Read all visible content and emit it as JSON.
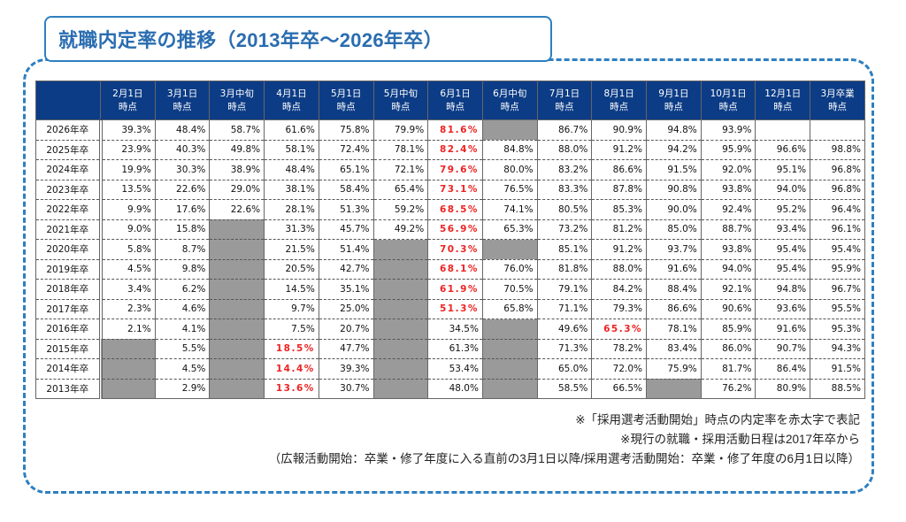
{
  "title": "就職内定率の推移（2013年卒〜2026年卒）",
  "colors": {
    "frame_border": "#2e7fc1",
    "title_text": "#2a6db0",
    "header_bg": "#0c3c85",
    "header_text": "#ffffff",
    "highlight_red": "#ee2222",
    "not_available_cell": "#9a9a9a"
  },
  "table": {
    "corner_label": "",
    "columns": [
      {
        "line1": "2月1日",
        "line2": "時点"
      },
      {
        "line1": "3月1日",
        "line2": "時点"
      },
      {
        "line1": "3月中旬",
        "line2": "時点"
      },
      {
        "line1": "4月1日",
        "line2": "時点"
      },
      {
        "line1": "5月1日",
        "line2": "時点"
      },
      {
        "line1": "5月中旬",
        "line2": "時点"
      },
      {
        "line1": "6月1日",
        "line2": "時点"
      },
      {
        "line1": "6月中旬",
        "line2": "時点"
      },
      {
        "line1": "7月1日",
        "line2": "時点"
      },
      {
        "line1": "8月1日",
        "line2": "時点"
      },
      {
        "line1": "9月1日",
        "line2": "時点"
      },
      {
        "line1": "10月1日",
        "line2": "時点"
      },
      {
        "line1": "12月1日",
        "line2": "時点"
      },
      {
        "line1": "3月卒業",
        "line2": "時点"
      }
    ],
    "rows": [
      {
        "year": "2026年卒",
        "cells": [
          {
            "v": "39.3%"
          },
          {
            "v": "48.4%"
          },
          {
            "v": "58.7%"
          },
          {
            "v": "61.6%"
          },
          {
            "v": "75.8%"
          },
          {
            "v": "79.9%"
          },
          {
            "v": "81.6%",
            "red": true
          },
          {
            "na": true
          },
          {
            "v": "86.7%"
          },
          {
            "v": "90.9%"
          },
          {
            "v": "94.8%"
          },
          {
            "v": "93.9%"
          },
          {
            "v": ""
          },
          {
            "v": ""
          }
        ]
      },
      {
        "year": "2025年卒",
        "cells": [
          {
            "v": "23.9%"
          },
          {
            "v": "40.3%"
          },
          {
            "v": "49.8%"
          },
          {
            "v": "58.1%"
          },
          {
            "v": "72.4%"
          },
          {
            "v": "78.1%"
          },
          {
            "v": "82.4%",
            "red": true
          },
          {
            "v": "84.8%"
          },
          {
            "v": "88.0%"
          },
          {
            "v": "91.2%"
          },
          {
            "v": "94.2%"
          },
          {
            "v": "95.9%"
          },
          {
            "v": "96.6%"
          },
          {
            "v": "98.8%"
          }
        ]
      },
      {
        "year": "2024年卒",
        "cells": [
          {
            "v": "19.9%"
          },
          {
            "v": "30.3%"
          },
          {
            "v": "38.9%"
          },
          {
            "v": "48.4%"
          },
          {
            "v": "65.1%"
          },
          {
            "v": "72.1%"
          },
          {
            "v": "79.6%",
            "red": true
          },
          {
            "v": "80.0%"
          },
          {
            "v": "83.2%"
          },
          {
            "v": "86.6%"
          },
          {
            "v": "91.5%"
          },
          {
            "v": "92.0%"
          },
          {
            "v": "95.1%"
          },
          {
            "v": "96.8%"
          }
        ]
      },
      {
        "year": "2023年卒",
        "cells": [
          {
            "v": "13.5%"
          },
          {
            "v": "22.6%"
          },
          {
            "v": "29.0%"
          },
          {
            "v": "38.1%"
          },
          {
            "v": "58.4%"
          },
          {
            "v": "65.4%"
          },
          {
            "v": "73.1%",
            "red": true
          },
          {
            "v": "76.5%"
          },
          {
            "v": "83.3%"
          },
          {
            "v": "87.8%"
          },
          {
            "v": "90.8%"
          },
          {
            "v": "93.8%"
          },
          {
            "v": "94.0%"
          },
          {
            "v": "96.8%"
          }
        ]
      },
      {
        "year": "2022年卒",
        "cells": [
          {
            "v": "9.9%"
          },
          {
            "v": "17.6%"
          },
          {
            "v": "22.6%"
          },
          {
            "v": "28.1%"
          },
          {
            "v": "51.3%"
          },
          {
            "v": "59.2%"
          },
          {
            "v": "68.5%",
            "red": true
          },
          {
            "v": "74.1%"
          },
          {
            "v": "80.5%"
          },
          {
            "v": "85.3%"
          },
          {
            "v": "90.0%"
          },
          {
            "v": "92.4%"
          },
          {
            "v": "95.2%"
          },
          {
            "v": "96.4%"
          }
        ]
      },
      {
        "year": "2021年卒",
        "cells": [
          {
            "v": "9.0%"
          },
          {
            "v": "15.8%"
          },
          {
            "na": true
          },
          {
            "v": "31.3%"
          },
          {
            "v": "45.7%"
          },
          {
            "v": "49.2%"
          },
          {
            "v": "56.9%",
            "red": true
          },
          {
            "v": "65.3%"
          },
          {
            "v": "73.2%"
          },
          {
            "v": "81.2%"
          },
          {
            "v": "85.0%"
          },
          {
            "v": "88.7%"
          },
          {
            "v": "93.4%"
          },
          {
            "v": "96.1%"
          }
        ]
      },
      {
        "year": "2020年卒",
        "cells": [
          {
            "v": "5.8%"
          },
          {
            "v": "8.7%"
          },
          {
            "na": true
          },
          {
            "v": "21.5%"
          },
          {
            "v": "51.4%"
          },
          {
            "na": true
          },
          {
            "v": "70.3%",
            "red": true
          },
          {
            "na": true
          },
          {
            "v": "85.1%"
          },
          {
            "v": "91.2%"
          },
          {
            "v": "93.7%"
          },
          {
            "v": "93.8%"
          },
          {
            "v": "95.4%"
          },
          {
            "v": "95.4%"
          }
        ]
      },
      {
        "year": "2019年卒",
        "cells": [
          {
            "v": "4.5%"
          },
          {
            "v": "9.8%"
          },
          {
            "na": true
          },
          {
            "v": "20.5%"
          },
          {
            "v": "42.7%"
          },
          {
            "na": true
          },
          {
            "v": "68.1%",
            "red": true
          },
          {
            "v": "76.0%"
          },
          {
            "v": "81.8%"
          },
          {
            "v": "88.0%"
          },
          {
            "v": "91.6%"
          },
          {
            "v": "94.0%"
          },
          {
            "v": "95.4%"
          },
          {
            "v": "95.9%"
          }
        ]
      },
      {
        "year": "2018年卒",
        "cells": [
          {
            "v": "3.4%"
          },
          {
            "v": "6.2%"
          },
          {
            "na": true
          },
          {
            "v": "14.5%"
          },
          {
            "v": "35.1%"
          },
          {
            "na": true
          },
          {
            "v": "61.9%",
            "red": true
          },
          {
            "v": "70.5%"
          },
          {
            "v": "79.1%"
          },
          {
            "v": "84.2%"
          },
          {
            "v": "88.4%"
          },
          {
            "v": "92.1%"
          },
          {
            "v": "94.8%"
          },
          {
            "v": "96.7%"
          }
        ]
      },
      {
        "year": "2017年卒",
        "cells": [
          {
            "v": "2.3%"
          },
          {
            "v": "4.6%"
          },
          {
            "na": true
          },
          {
            "v": "9.7%"
          },
          {
            "v": "25.0%"
          },
          {
            "na": true
          },
          {
            "v": "51.3%",
            "red": true
          },
          {
            "v": "65.8%"
          },
          {
            "v": "71.1%"
          },
          {
            "v": "79.3%"
          },
          {
            "v": "86.6%"
          },
          {
            "v": "90.6%"
          },
          {
            "v": "93.6%"
          },
          {
            "v": "95.5%"
          }
        ]
      },
      {
        "year": "2016年卒",
        "cells": [
          {
            "v": "2.1%"
          },
          {
            "v": "4.1%"
          },
          {
            "na": true
          },
          {
            "v": "7.5%"
          },
          {
            "v": "20.7%"
          },
          {
            "na": true
          },
          {
            "v": "34.5%"
          },
          {
            "na": true
          },
          {
            "v": "49.6%"
          },
          {
            "v": "65.3%",
            "red": true
          },
          {
            "v": "78.1%"
          },
          {
            "v": "85.9%"
          },
          {
            "v": "91.6%"
          },
          {
            "v": "95.3%"
          }
        ]
      },
      {
        "year": "2015年卒",
        "cells": [
          {
            "na": true
          },
          {
            "v": "5.5%"
          },
          {
            "na": true
          },
          {
            "v": "18.5%",
            "red": true
          },
          {
            "v": "47.7%"
          },
          {
            "na": true
          },
          {
            "v": "61.3%"
          },
          {
            "na": true
          },
          {
            "v": "71.3%"
          },
          {
            "v": "78.2%"
          },
          {
            "v": "83.4%"
          },
          {
            "v": "86.0%"
          },
          {
            "v": "90.7%"
          },
          {
            "v": "94.3%"
          }
        ]
      },
      {
        "year": "2014年卒",
        "cells": [
          {
            "na": true
          },
          {
            "v": "4.5%"
          },
          {
            "na": true
          },
          {
            "v": "14.4%",
            "red": true
          },
          {
            "v": "39.3%"
          },
          {
            "na": true
          },
          {
            "v": "53.4%"
          },
          {
            "na": true
          },
          {
            "v": "65.0%"
          },
          {
            "v": "72.0%"
          },
          {
            "v": "75.9%"
          },
          {
            "v": "81.7%"
          },
          {
            "v": "86.4%"
          },
          {
            "v": "91.5%"
          }
        ]
      },
      {
        "year": "2013年卒",
        "cells": [
          {
            "na": true
          },
          {
            "v": "2.9%"
          },
          {
            "na": true
          },
          {
            "v": "13.6%",
            "red": true
          },
          {
            "v": "30.7%"
          },
          {
            "na": true
          },
          {
            "v": "48.0%"
          },
          {
            "na": true
          },
          {
            "v": "58.5%"
          },
          {
            "v": "66.5%"
          },
          {
            "na": true
          },
          {
            "v": "76.2%"
          },
          {
            "v": "80.9%"
          },
          {
            "v": "88.5%"
          }
        ]
      }
    ]
  },
  "notes": [
    "※「採用選考活動開始」時点の内定率を赤太字で表記",
    "※現行の就職・採用活動日程は2017年卒から",
    "（広報活動開始：卒業・修了年度に入る直前の3月1日以降/採用選考活動開始：卒業・修了年度の6月1日以降）"
  ]
}
